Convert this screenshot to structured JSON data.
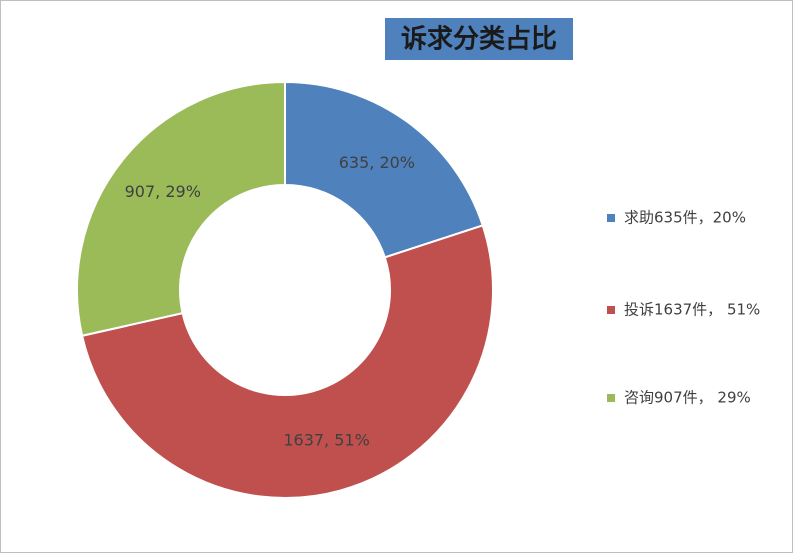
{
  "chart_data": {
    "type": "donut",
    "title": "诉求分类占比",
    "categories": [
      "求助635件，20%",
      "投诉1637件， 51%",
      "咨询907件， 29%"
    ],
    "values": [
      635,
      1637,
      907
    ],
    "value_labels": [
      "635, 20%",
      "1637, 51%",
      "907, 29%"
    ],
    "colors": [
      "#4f81bd",
      "#c0504d",
      "#9bbb59"
    ],
    "legend": "right"
  }
}
